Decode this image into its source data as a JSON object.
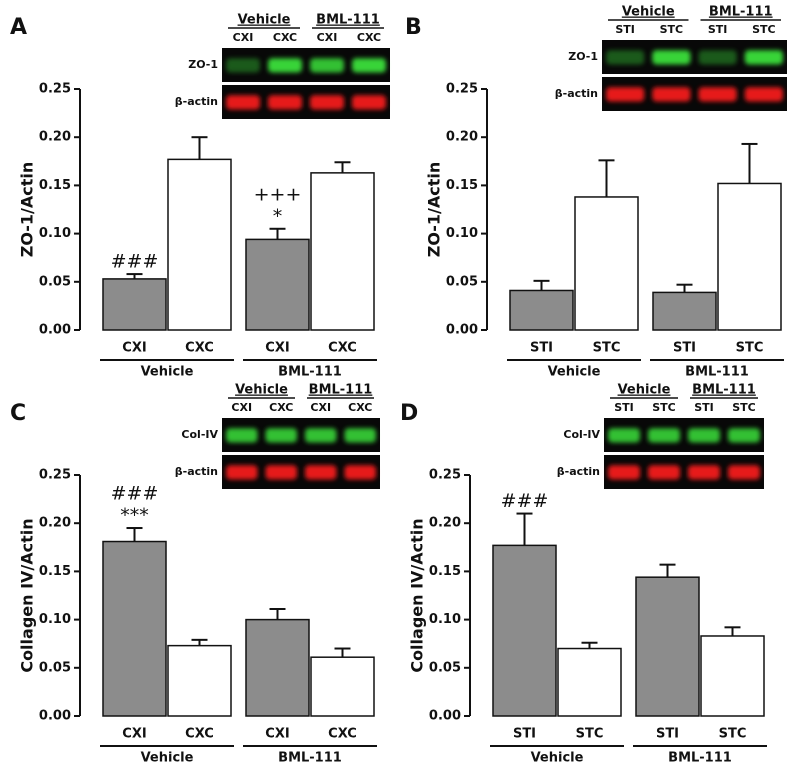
{
  "chart_data": [
    {
      "type": "bar",
      "panel_label": "A",
      "ylabel": "ZO-1/Actin",
      "categories": [
        "CXI",
        "CXC",
        "CXI",
        "CXC"
      ],
      "groups": [
        "Vehicle",
        "BML-111"
      ],
      "values": [
        0.053,
        0.177,
        0.094,
        0.163
      ],
      "errors": [
        0.005,
        0.023,
        0.011,
        0.011
      ],
      "colors": [
        "#8c8c8c",
        "#ffffff",
        "#8c8c8c",
        "#ffffff"
      ],
      "bar_annotations": [
        [
          "###"
        ],
        [],
        [
          "+++",
          "*"
        ],
        []
      ],
      "ylim": [
        0,
        0.25
      ],
      "yticks": [
        {
          "value": 0,
          "label": "0.00"
        },
        {
          "value": 0.05,
          "label": "0.05"
        },
        {
          "value": 0.1,
          "label": "0.10"
        },
        {
          "value": 0.15,
          "label": "0.15"
        },
        {
          "value": 0.2,
          "label": "0.20"
        },
        {
          "value": 0.25,
          "label": "0.25"
        }
      ],
      "blot": {
        "groups": [
          "Vehicle",
          "BML-111"
        ],
        "lanes": [
          "CXI",
          "CXC",
          "CXI",
          "CXC"
        ],
        "rows": [
          "ZO-1",
          "β-actin"
        ]
      }
    },
    {
      "type": "bar",
      "panel_label": "B",
      "ylabel": "ZO-1/Actin",
      "categories": [
        "STI",
        "STC",
        "STI",
        "STC"
      ],
      "groups": [
        "Vehicle",
        "BML-111"
      ],
      "values": [
        0.041,
        0.138,
        0.039,
        0.152
      ],
      "errors": [
        0.01,
        0.038,
        0.008,
        0.041
      ],
      "colors": [
        "#8c8c8c",
        "#ffffff",
        "#8c8c8c",
        "#ffffff"
      ],
      "bar_annotations": [
        [],
        [],
        [],
        []
      ],
      "ylim": [
        0,
        0.25
      ],
      "yticks": [
        {
          "value": 0,
          "label": "0.00"
        },
        {
          "value": 0.05,
          "label": "0.05"
        },
        {
          "value": 0.1,
          "label": "0.10"
        },
        {
          "value": 0.15,
          "label": "0.15"
        },
        {
          "value": 0.2,
          "label": "0.20"
        },
        {
          "value": 0.25,
          "label": "0.25"
        }
      ],
      "blot": {
        "groups": [
          "Vehicle",
          "BML-111"
        ],
        "lanes": [
          "STI",
          "STC",
          "STI",
          "STC"
        ],
        "rows": [
          "ZO-1",
          "β-actin"
        ]
      }
    },
    {
      "type": "bar",
      "panel_label": "C",
      "ylabel": "Collagen IV/Actin",
      "categories": [
        "CXI",
        "CXC",
        "CXI",
        "CXC"
      ],
      "groups": [
        "Vehicle",
        "BML-111"
      ],
      "values": [
        0.181,
        0.073,
        0.1,
        0.061
      ],
      "errors": [
        0.014,
        0.006,
        0.011,
        0.009
      ],
      "colors": [
        "#8c8c8c",
        "#ffffff",
        "#8c8c8c",
        "#ffffff"
      ],
      "bar_annotations": [
        [
          "###",
          "***"
        ],
        [],
        [],
        []
      ],
      "ylim": [
        0,
        0.25
      ],
      "yticks": [
        {
          "value": 0,
          "label": "0.00"
        },
        {
          "value": 0.05,
          "label": "0.05"
        },
        {
          "value": 0.1,
          "label": "0.10"
        },
        {
          "value": 0.15,
          "label": "0.15"
        },
        {
          "value": 0.2,
          "label": "0.20"
        },
        {
          "value": 0.25,
          "label": "0.25"
        }
      ],
      "blot": {
        "groups": [
          "Vehicle",
          "BML-111"
        ],
        "lanes": [
          "CXI",
          "CXC",
          "CXI",
          "CXC"
        ],
        "rows": [
          "Col-IV",
          "β-actin"
        ]
      }
    },
    {
      "type": "bar",
      "panel_label": "D",
      "ylabel": "Collagen IV/Actin",
      "categories": [
        "STI",
        "STC",
        "STI",
        "STC"
      ],
      "groups": [
        "Vehicle",
        "BML-111"
      ],
      "values": [
        0.177,
        0.07,
        0.144,
        0.083
      ],
      "errors": [
        0.033,
        0.006,
        0.013,
        0.009
      ],
      "colors": [
        "#8c8c8c",
        "#ffffff",
        "#8c8c8c",
        "#ffffff"
      ],
      "bar_annotations": [
        [
          "###"
        ],
        [],
        [],
        []
      ],
      "ylim": [
        0,
        0.25
      ],
      "yticks": [
        {
          "value": 0,
          "label": "0.00"
        },
        {
          "value": 0.05,
          "label": "0.05"
        },
        {
          "value": 0.1,
          "label": "0.10"
        },
        {
          "value": 0.15,
          "label": "0.15"
        },
        {
          "value": 0.2,
          "label": "0.20"
        },
        {
          "value": 0.25,
          "label": "0.25"
        }
      ],
      "blot": {
        "groups": [
          "Vehicle",
          "BML-111"
        ],
        "lanes": [
          "STI",
          "STC",
          "STI",
          "STC"
        ],
        "rows": [
          "Col-IV",
          "β-actin"
        ]
      }
    }
  ]
}
